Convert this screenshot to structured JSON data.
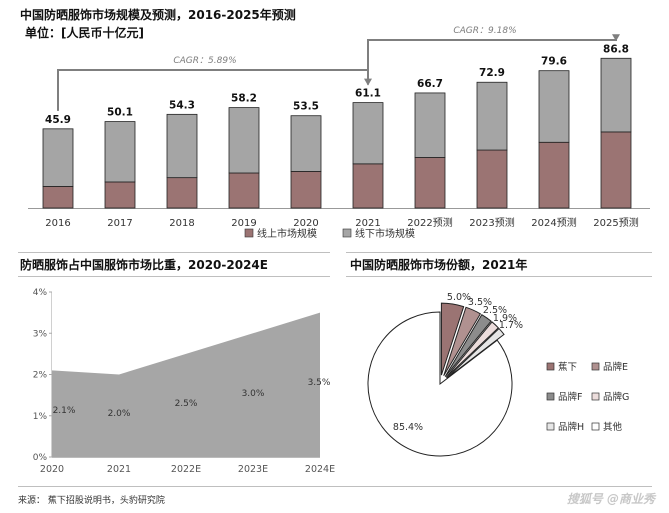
{
  "header": {
    "title": "中国防晒服饰市场规模及预测，2016-2025年预测",
    "unit": "单位：[人民币十亿元]"
  },
  "colors": {
    "online": "#9b7473",
    "offline": "#a5a5a5",
    "area": "#a6a6a6",
    "bar_stroke": "#222222"
  },
  "chart_data": [
    {
      "type": "bar",
      "stacked": true,
      "title": "中国防晒服饰市场规模及预测，2016-2025年预测",
      "ylabel": "单位：[人民币十亿元]",
      "categories": [
        "2016",
        "2017",
        "2018",
        "2019",
        "2020",
        "2021",
        "2022预测",
        "2023预测",
        "2024预测",
        "2025预测"
      ],
      "totals": [
        45.9,
        50.1,
        54.3,
        58.2,
        53.5,
        61.1,
        66.7,
        72.9,
        79.6,
        86.8
      ],
      "series": [
        {
          "name": "线上市场规模",
          "values": [
            12.5,
            15.1,
            17.6,
            20.3,
            21.2,
            25.6,
            29.3,
            33.6,
            38.1,
            44.1
          ]
        },
        {
          "name": "线下市场规模",
          "values": [
            33.4,
            35.0,
            36.7,
            37.9,
            32.3,
            35.5,
            37.4,
            39.3,
            41.5,
            42.7
          ]
        }
      ],
      "annotations": [
        {
          "text": "CAGR：5.89%",
          "from": "2016",
          "to": "2021"
        },
        {
          "text": "CAGR：9.18%",
          "from": "2021",
          "to": "2025预测"
        }
      ],
      "legend": "bottom"
    },
    {
      "type": "area",
      "title": "防晒服饰占中国服饰市场比重，2020-2024E",
      "categories": [
        "2020",
        "2021",
        "2022E",
        "2023E",
        "2024E"
      ],
      "values": [
        2.1,
        2.0,
        2.5,
        3.0,
        3.5
      ],
      "value_labels": [
        "2.1%",
        "2.0%",
        "2.5%",
        "3.0%",
        "3.5%"
      ],
      "yticks": [
        "0%",
        "1%",
        "2%",
        "3%",
        "4%"
      ],
      "ylim": [
        0,
        4
      ],
      "grid": false
    },
    {
      "type": "pie",
      "title": "中国防晒服饰市场份额，2021年",
      "slices": [
        {
          "name": "蕉下",
          "value": 5.0,
          "label": "5.0%",
          "color": "#9b7473"
        },
        {
          "name": "品牌E",
          "value": 3.5,
          "label": "3.5%",
          "color": "#b09190"
        },
        {
          "name": "品牌F",
          "value": 2.5,
          "label": "2.5%",
          "color": "#8c8c8c"
        },
        {
          "name": "品牌G",
          "value": 1.9,
          "label": "1.9%",
          "color": "#ecdddc"
        },
        {
          "name": "品牌H",
          "value": 1.7,
          "label": "1.7%",
          "color": "#e6e6e6"
        },
        {
          "name": "其他",
          "value": 85.4,
          "label": "85.4%",
          "color": "#ffffff"
        }
      ],
      "legend": "right"
    }
  ],
  "footer": {
    "source": "来源：  蕉下招股说明书，头豹研究院",
    "watermark": "搜狐号 @商业秀"
  }
}
